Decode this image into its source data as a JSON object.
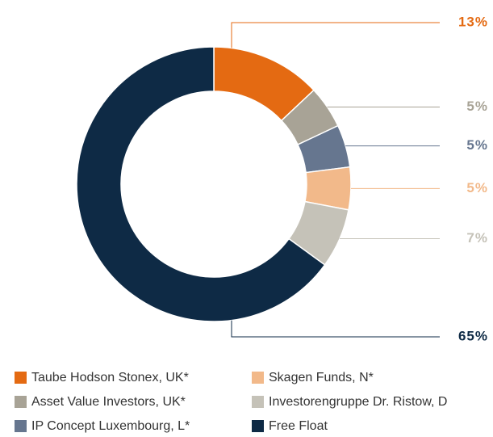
{
  "chart_data": {
    "type": "pie",
    "categories": [
      "Taube Hodson Stonex, UK*",
      "Asset Value Investors, UK*",
      "IP Concept Luxembourg, L*",
      "Skagen Funds, N*",
      "Investorengruppe Dr. Ristow, D",
      "Free Float"
    ],
    "values": [
      13,
      5,
      5,
      5,
      7,
      65
    ],
    "value_labels": [
      "13%",
      "5%",
      "5%",
      "5%",
      "7%",
      "65%"
    ],
    "colors": [
      "#e46a12",
      "#a8a396",
      "#66768f",
      "#f2b98a",
      "#c5c2b8",
      "#0e2a45"
    ],
    "legend": "bottom"
  }
}
